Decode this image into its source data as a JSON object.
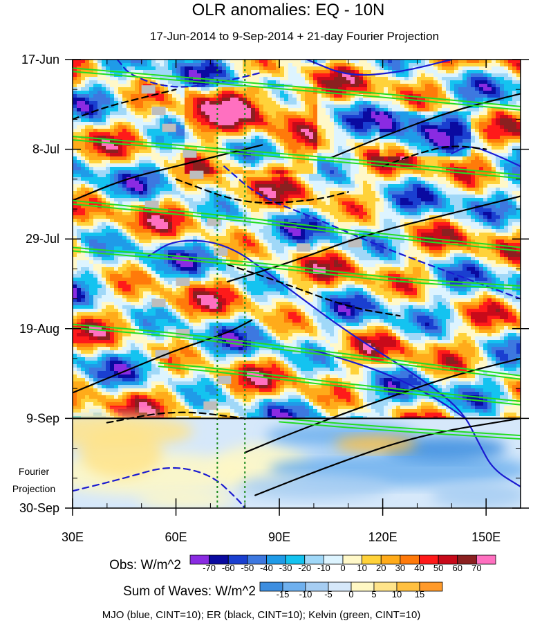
{
  "chart_data": {
    "type": "heatmap",
    "title": "OLR anomalies: EQ - 10N",
    "subtitle": "17-Jun-2014 to 9-Sep-2014 + 21-day Fourier Projection",
    "x_axis": {
      "range": [
        30,
        160
      ],
      "units": "degrees longitude",
      "ticks": [
        {
          "value": 30,
          "label": "30E"
        },
        {
          "value": 60,
          "label": "60E"
        },
        {
          "value": 90,
          "label": "90E"
        },
        {
          "value": 120,
          "label": "120E"
        },
        {
          "value": 150,
          "label": "150E"
        }
      ]
    },
    "y_axis": {
      "range_days": [
        0,
        105
      ],
      "units": "days since 17-Jun-2014 (time increases downward)",
      "ticks": [
        {
          "day": 0,
          "label": "17-Jun"
        },
        {
          "day": 21,
          "label": "8-Jul"
        },
        {
          "day": 42,
          "label": "29-Jul"
        },
        {
          "day": 63,
          "label": "19-Aug"
        },
        {
          "day": 84,
          "label": "9-Sep"
        },
        {
          "day": 105,
          "label": "30-Sep"
        }
      ]
    },
    "projection_start_day": 84,
    "projection_label_line1": "Fourier",
    "projection_label_line2": "Projection",
    "reference_longitudes": [
      72,
      80
    ],
    "obs_legend": {
      "label": "Obs: W/m^2",
      "levels": [
        "-70",
        "-60",
        "-50",
        "-40",
        "-30",
        "-20",
        "-10",
        "0",
        "10",
        "20",
        "30",
        "40",
        "50",
        "60",
        "70"
      ],
      "colors": [
        "#8a2be2",
        "#0a0aa0",
        "#1a3fd0",
        "#3d78e0",
        "#1f9be8",
        "#14c3f0",
        "#a0d8f8",
        "#ddf4ff",
        "#fff8c8",
        "#ffd23a",
        "#ffab1a",
        "#ff7a0a",
        "#ff1a1a",
        "#c80a1a",
        "#8b2020",
        "#ff70c0"
      ]
    },
    "waves_legend": {
      "label": "Sum of Waves: W/m^2",
      "levels": [
        "-15",
        "-10",
        "-5",
        "0",
        "5",
        "10",
        "15"
      ],
      "colors": [
        "#3d8ee0",
        "#6fb0ee",
        "#a6cdf2",
        "#d6e8fa",
        "#fff8c4",
        "#ffe48a",
        "#ffc040",
        "#ff9a2a"
      ]
    },
    "footer": "MJO (blue, CINT=10); ER (black, CINT=10); Kelvin (green, CINT=10)",
    "series": [
      {
        "name": "MJO",
        "color": "#1a1ad0",
        "cint": 10,
        "contours": [
          {
            "sign": "positive",
            "points": [
              [
                98,
                0
              ],
              [
                110,
                4
              ],
              [
                125,
                3
              ],
              [
                140,
                0
              ]
            ]
          },
          {
            "sign": "positive",
            "points": [
              [
                140,
                22
              ],
              [
                145,
                20
              ],
              [
                152,
                22
              ],
              [
                160,
                25
              ]
            ]
          },
          {
            "sign": "positive",
            "points": [
              [
                52,
                46
              ],
              [
                60,
                42
              ],
              [
                75,
                43
              ],
              [
                90,
                52
              ],
              [
                110,
                64
              ],
              [
                130,
                74
              ],
              [
                143,
                82
              ],
              [
                148,
                90
              ],
              [
                152,
                96
              ],
              [
                160,
                100
              ]
            ]
          },
          {
            "sign": "positive",
            "points": [
              [
                100,
                68
              ],
              [
                120,
                73
              ],
              [
                135,
                79
              ],
              [
                144,
                84
              ]
            ]
          },
          {
            "sign": "negative",
            "points": [
              [
                43,
                0
              ],
              [
                47,
                4
              ],
              [
                60,
                7
              ],
              [
                75,
                5
              ],
              [
                85,
                3
              ]
            ]
          },
          {
            "sign": "negative",
            "points": [
              [
                74,
                25
              ],
              [
                84,
                32
              ],
              [
                100,
                37
              ],
              [
                120,
                44
              ],
              [
                140,
                50
              ],
              [
                160,
                56
              ]
            ]
          },
          {
            "sign": "negative",
            "points": [
              [
                30,
                101
              ],
              [
                45,
                98
              ],
              [
                58,
                95
              ],
              [
                70,
                97
              ],
              [
                78,
                103
              ],
              [
                80,
                105
              ]
            ]
          }
        ]
      },
      {
        "name": "ER",
        "color": "#000000",
        "cint": 10,
        "contours": [
          {
            "sign": "positive",
            "points": [
              [
                30,
                33
              ],
              [
                45,
                28
              ],
              [
                60,
                25
              ],
              [
                75,
                22
              ],
              [
                85,
                20
              ]
            ]
          },
          {
            "sign": "positive",
            "points": [
              [
                30,
                78
              ],
              [
                45,
                73
              ],
              [
                60,
                68
              ],
              [
                75,
                64
              ],
              [
                82,
                61
              ]
            ]
          },
          {
            "sign": "positive",
            "points": [
              [
                105,
                23
              ],
              [
                120,
                18
              ],
              [
                140,
                12
              ],
              [
                160,
                8
              ]
            ]
          },
          {
            "sign": "positive",
            "points": [
              [
                75,
                52
              ],
              [
                95,
                47
              ],
              [
                115,
                41
              ],
              [
                140,
                36
              ],
              [
                160,
                32
              ]
            ]
          },
          {
            "sign": "positive",
            "points": [
              [
                80,
                92
              ],
              [
                95,
                87
              ],
              [
                115,
                81
              ],
              [
                140,
                74
              ],
              [
                160,
                70
              ]
            ]
          },
          {
            "sign": "positive",
            "points": [
              [
                83,
                102
              ],
              [
                105,
                95
              ],
              [
                130,
                88
              ],
              [
                160,
                84
              ]
            ]
          },
          {
            "sign": "negative",
            "points": [
              [
                30,
                14
              ],
              [
                40,
                11
              ],
              [
                50,
                9
              ],
              [
                60,
                7
              ]
            ]
          },
          {
            "sign": "negative",
            "points": [
              [
                60,
                28
              ],
              [
                80,
                34
              ],
              [
                100,
                33
              ],
              [
                110,
                31
              ]
            ]
          },
          {
            "sign": "negative",
            "points": [
              [
                75,
                48
              ],
              [
                90,
                52
              ],
              [
                110,
                58
              ],
              [
                125,
                60
              ]
            ]
          },
          {
            "sign": "negative",
            "points": [
              [
                120,
                25
              ],
              [
                130,
                22
              ],
              [
                140,
                20
              ],
              [
                150,
                21
              ]
            ]
          },
          {
            "sign": "negative",
            "points": [
              [
                40,
                85
              ],
              [
                60,
                82
              ],
              [
                80,
                84
              ]
            ]
          }
        ]
      },
      {
        "name": "Kelvin",
        "color": "#22dd22",
        "cint": 10,
        "contours": [
          {
            "sign": "positive",
            "points": [
              [
                30,
                2
              ],
              [
                60,
                4
              ],
              [
                90,
                6
              ],
              [
                120,
                8
              ],
              [
                160,
                11
              ]
            ]
          },
          {
            "sign": "positive",
            "points": [
              [
                30,
                18
              ],
              [
                60,
                20
              ],
              [
                90,
                22
              ],
              [
                120,
                24
              ],
              [
                160,
                27
              ]
            ]
          },
          {
            "sign": "positive",
            "points": [
              [
                30,
                33
              ],
              [
                55,
                35
              ],
              [
                80,
                37
              ],
              [
                110,
                40
              ],
              [
                160,
                44
              ]
            ]
          },
          {
            "sign": "positive",
            "points": [
              [
                30,
                44
              ],
              [
                60,
                46
              ],
              [
                90,
                48
              ],
              [
                120,
                51
              ],
              [
                160,
                53
              ]
            ]
          },
          {
            "sign": "positive",
            "points": [
              [
                30,
                62
              ],
              [
                60,
                64
              ],
              [
                90,
                67
              ],
              [
                120,
                70
              ],
              [
                160,
                74
              ]
            ]
          },
          {
            "sign": "positive",
            "points": [
              [
                55,
                71
              ],
              [
                80,
                73
              ],
              [
                110,
                76
              ],
              [
                160,
                80
              ]
            ]
          },
          {
            "sign": "positive",
            "points": [
              [
                90,
                84
              ],
              [
                120,
                86
              ],
              [
                160,
                88
              ]
            ]
          }
        ]
      }
    ],
    "missing_data_patches": [
      {
        "lon": 52,
        "day": 7
      },
      {
        "lon": 55,
        "day": 12
      },
      {
        "lon": 58,
        "day": 16
      },
      {
        "lon": 64,
        "day": 22
      },
      {
        "lon": 66,
        "day": 27
      },
      {
        "lon": 53,
        "day": 34
      },
      {
        "lon": 71,
        "day": 38
      },
      {
        "lon": 73,
        "day": 45
      },
      {
        "lon": 62,
        "day": 52
      },
      {
        "lon": 55,
        "day": 57
      },
      {
        "lon": 62,
        "day": 64
      },
      {
        "lon": 56,
        "day": 69
      },
      {
        "lon": 74,
        "day": 75
      },
      {
        "lon": 70,
        "day": 81
      },
      {
        "lon": 97,
        "day": 44
      },
      {
        "lon": 112,
        "day": 43
      }
    ]
  }
}
